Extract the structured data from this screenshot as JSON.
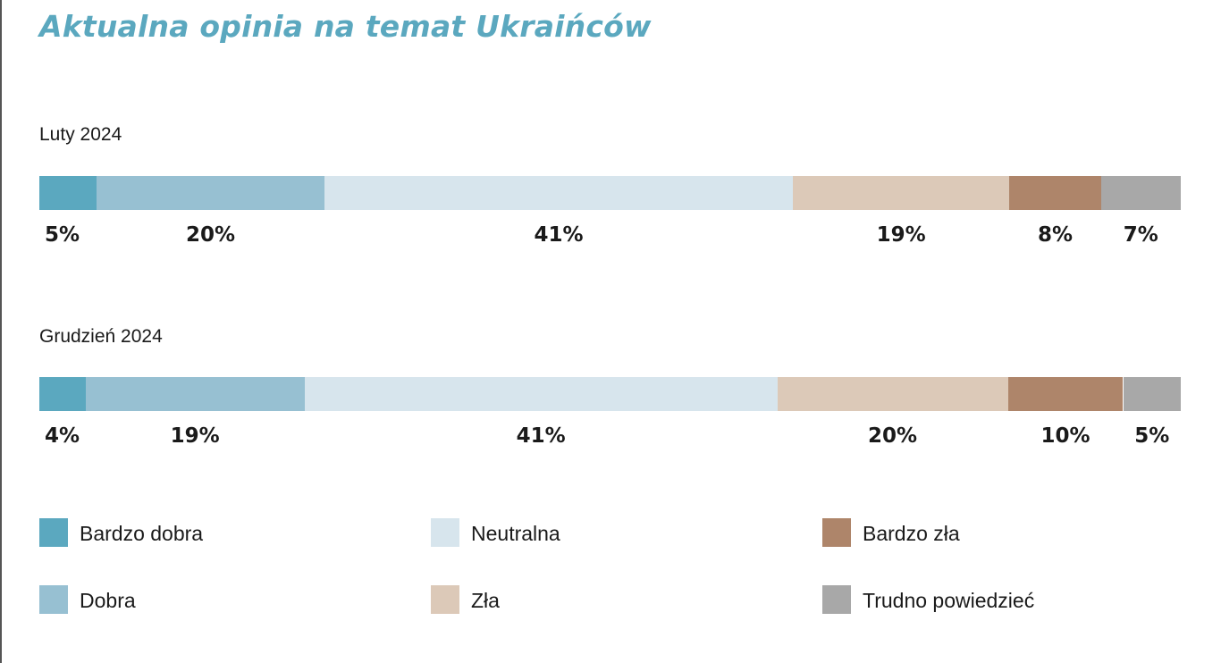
{
  "chart_data": {
    "type": "bar",
    "orientation": "horizontal-stacked-100",
    "title": "Aktualna opinia na temat Ukraińców",
    "categories": [
      "Bardzo dobra",
      "Dobra",
      "Neutralna",
      "Zła",
      "Bardzo zła",
      "Trudno powiedzieć"
    ],
    "colors": [
      "#5ba8bf",
      "#97c0d2",
      "#d7e5ed",
      "#dcc9b8",
      "#ae856a",
      "#a8a8a8"
    ],
    "rows": [
      {
        "label": "Luty 2024",
        "values": [
          5,
          20,
          41,
          19,
          8,
          7
        ],
        "value_labels": [
          "5%",
          "20%",
          "41%",
          "19%",
          "8%",
          "7%"
        ]
      },
      {
        "label": "Grudzień 2024",
        "values": [
          4,
          19,
          41,
          20,
          10,
          5
        ],
        "value_labels": [
          "4%",
          "19%",
          "41%",
          "20%",
          "10%",
          "5%"
        ]
      }
    ],
    "legend": {
      "position": "bottom",
      "entries": [
        {
          "label": "Bardzo dobra",
          "color": "#5ba8bf"
        },
        {
          "label": "Neutralna",
          "color": "#d7e5ed"
        },
        {
          "label": "Bardzo zła",
          "color": "#ae856a"
        },
        {
          "label": "Dobra",
          "color": "#97c0d2"
        },
        {
          "label": "Zła",
          "color": "#dcc9b8"
        },
        {
          "label": "Trudno powiedzieć",
          "color": "#a8a8a8"
        }
      ]
    },
    "grid": false
  }
}
